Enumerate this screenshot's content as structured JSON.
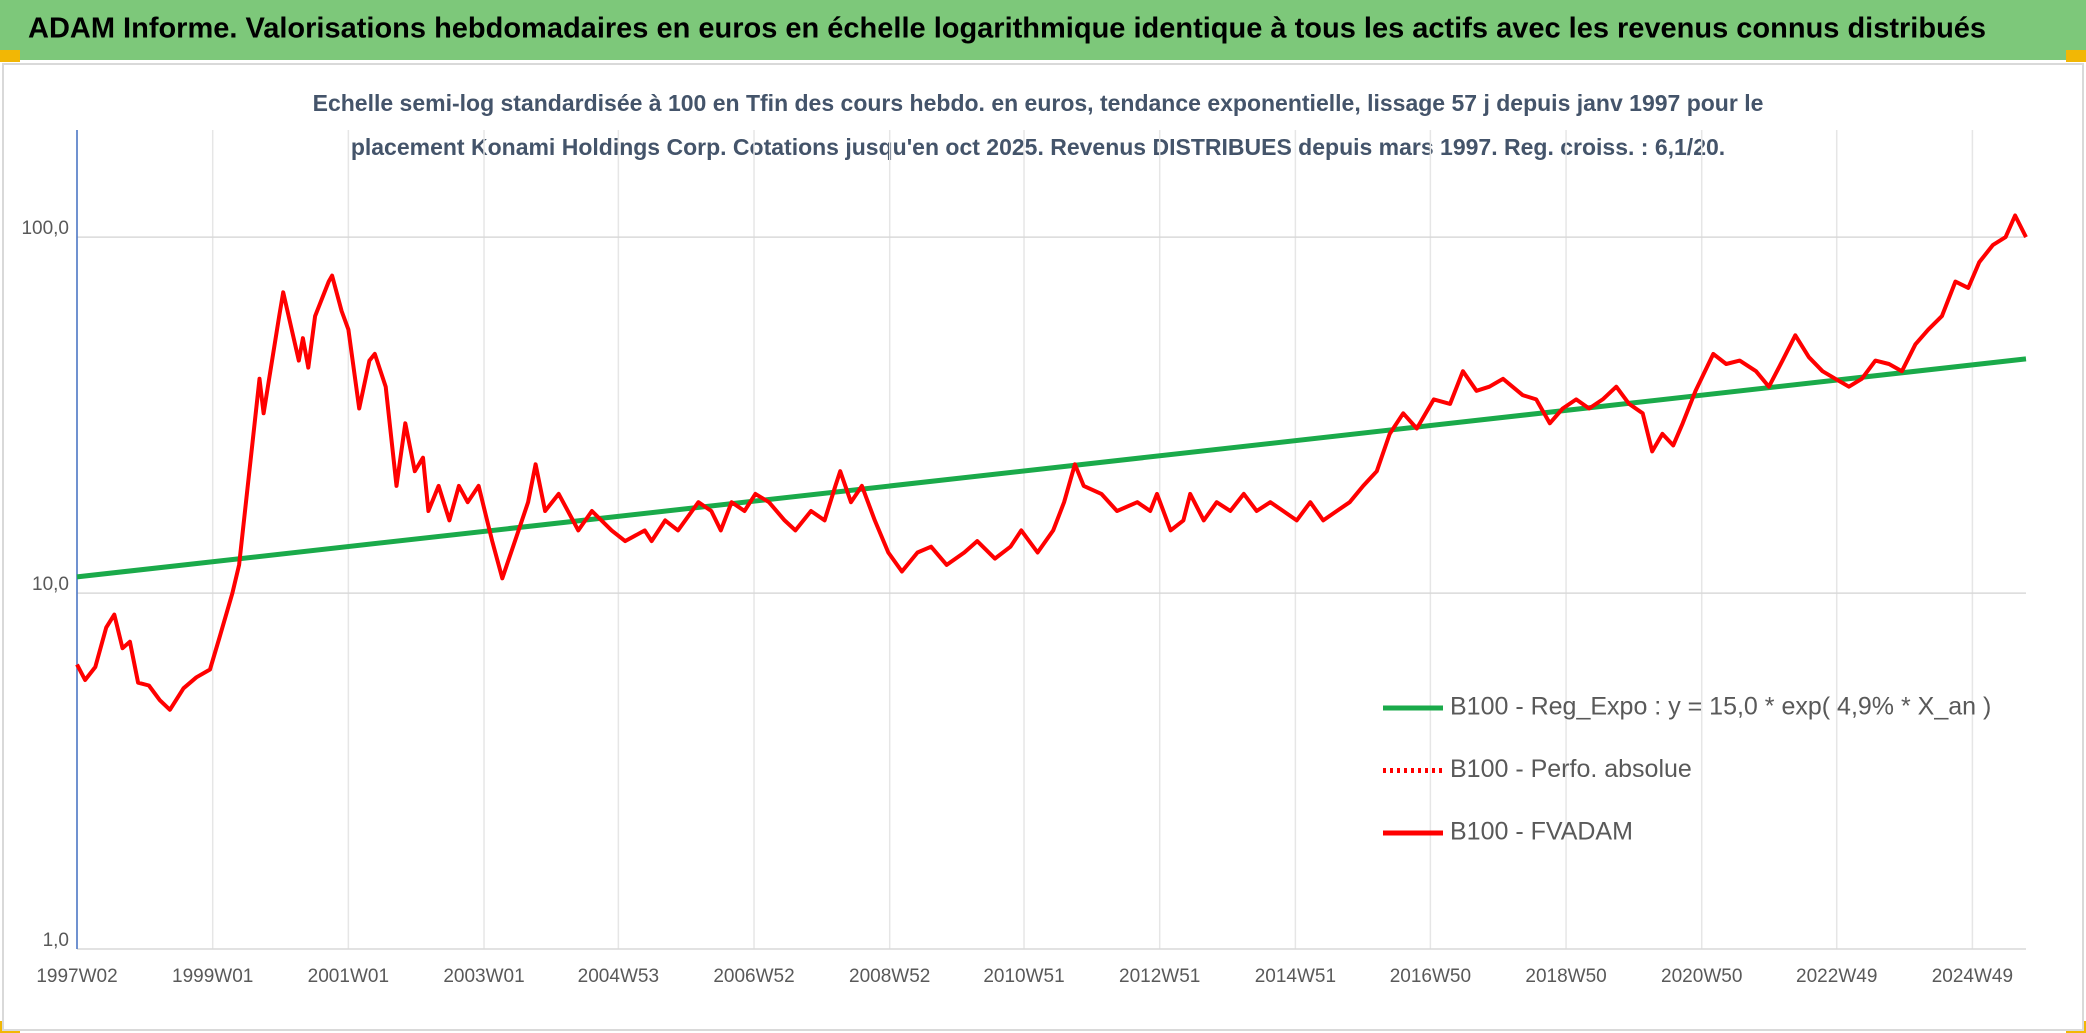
{
  "chart_data": {
    "type": "line",
    "title": "ADAM Informe. Valorisations hebdomadaires en euros en échelle logarithmique identique à tous les actifs avec les revenus connus distribués",
    "subtitle": [
      "Echelle semi-log standardisée à 100 en Tfin des cours hebdo. en euros, tendance exponentielle, lissage 57 j depuis janv 1997 pour le",
      "placement Konami Holdings Corp. Cotations jusqu'en oct 2025. Revenus DISTRIBUES depuis mars 1997. Reg. croiss. : 6,1/20."
    ],
    "yscale": "log",
    "grid": true,
    "legend": "lower right",
    "xlim": [
      1997.0,
      2025.73
    ],
    "ylim": [
      1,
      200
    ],
    "yticks": [
      {
        "value": 1,
        "label": "1,0"
      },
      {
        "value": 10,
        "label": "10,0"
      },
      {
        "value": 100,
        "label": "100,0"
      }
    ],
    "xticks": [
      {
        "value": 1997.0,
        "label": "1997W02"
      },
      {
        "value": 1999.0,
        "label": "1999W01"
      },
      {
        "value": 2001.0,
        "label": "2001W01"
      },
      {
        "value": 2003.0,
        "label": "2003W01"
      },
      {
        "value": 2004.98,
        "label": "2004W53"
      },
      {
        "value": 2006.98,
        "label": "2006W52"
      },
      {
        "value": 2008.98,
        "label": "2008W52"
      },
      {
        "value": 2010.96,
        "label": "2010W51"
      },
      {
        "value": 2012.96,
        "label": "2012W51"
      },
      {
        "value": 2014.96,
        "label": "2014W51"
      },
      {
        "value": 2016.95,
        "label": "2016W50"
      },
      {
        "value": 2018.95,
        "label": "2018W50"
      },
      {
        "value": 2020.95,
        "label": "2020W50"
      },
      {
        "value": 2022.94,
        "label": "2022W49"
      },
      {
        "value": 2024.94,
        "label": "2024W49"
      }
    ],
    "series": [
      {
        "name": "B100 - Reg_Expo : y = 15,0 * exp( 4,9% *  X_an )",
        "color": "#1aaa4a",
        "dash": "solid",
        "x": [
          1997.0,
          2025.73
        ],
        "values": [
          11.1,
          45.5
        ]
      },
      {
        "name": "B100 - Perfo. absolue",
        "color": "#ff0000",
        "dash": "dotted"
      },
      {
        "name": "B100 - FVADAM",
        "color": "#ff0000",
        "dash": "solid",
        "x": [
          1997.0,
          1997.12,
          1997.27,
          1997.43,
          1997.55,
          1997.67,
          1997.78,
          1997.9,
          1998.06,
          1998.22,
          1998.37,
          1998.57,
          1998.76,
          1998.96,
          1999.1,
          1999.29,
          1999.39,
          1999.69,
          1999.75,
          1999.98,
          2000.04,
          2000.27,
          2000.33,
          2000.41,
          2000.51,
          2000.71,
          2000.76,
          2000.9,
          2001.0,
          2001.16,
          2001.31,
          2001.39,
          2001.55,
          2001.71,
          2001.84,
          2001.98,
          2002.1,
          2002.18,
          2002.33,
          2002.49,
          2002.63,
          2002.76,
          2002.92,
          2003.12,
          2003.27,
          2003.51,
          2003.65,
          2003.76,
          2003.9,
          2004.1,
          2004.39,
          2004.59,
          2004.88,
          2005.08,
          2005.37,
          2005.47,
          2005.67,
          2005.86,
          2006.16,
          2006.35,
          2006.49,
          2006.65,
          2006.84,
          2007.0,
          2007.2,
          2007.43,
          2007.59,
          2007.82,
          2008.02,
          2008.18,
          2008.25,
          2008.41,
          2008.57,
          2008.76,
          2008.96,
          2009.16,
          2009.39,
          2009.59,
          2009.82,
          2010.08,
          2010.27,
          2010.53,
          2010.76,
          2010.92,
          2011.16,
          2011.39,
          2011.55,
          2011.71,
          2011.84,
          2012.1,
          2012.33,
          2012.63,
          2012.82,
          2012.92,
          2013.12,
          2013.31,
          2013.41,
          2013.61,
          2013.8,
          2014.0,
          2014.2,
          2014.39,
          2014.59,
          2014.78,
          2014.98,
          2015.18,
          2015.37,
          2015.57,
          2015.76,
          2015.96,
          2016.16,
          2016.35,
          2016.55,
          2016.75,
          2017.0,
          2017.24,
          2017.43,
          2017.63,
          2017.82,
          2018.02,
          2018.31,
          2018.51,
          2018.71,
          2018.9,
          2019.1,
          2019.29,
          2019.49,
          2019.69,
          2019.88,
          2020.08,
          2020.22,
          2020.37,
          2020.53,
          2020.67,
          2020.86,
          2021.12,
          2021.31,
          2021.51,
          2021.75,
          2021.94,
          2022.14,
          2022.33,
          2022.53,
          2022.73,
          2022.92,
          2023.12,
          2023.31,
          2023.51,
          2023.71,
          2023.9,
          2024.1,
          2024.29,
          2024.49,
          2024.69,
          2024.88,
          2025.04,
          2025.24,
          2025.43,
          2025.57,
          2025.73
        ],
        "values": [
          6.3,
          5.7,
          6.2,
          8.0,
          8.7,
          7.0,
          7.3,
          5.6,
          5.5,
          5.0,
          4.7,
          5.4,
          5.8,
          6.1,
          7.5,
          10,
          12,
          40,
          32,
          60,
          70,
          45,
          52,
          43,
          60,
          75,
          78,
          62,
          55,
          33,
          45,
          47,
          38,
          20,
          30,
          22,
          24,
          17,
          20,
          16,
          20,
          18,
          20,
          14,
          11,
          15,
          18,
          23,
          17,
          19,
          15,
          17,
          15,
          14,
          15,
          14,
          16,
          15,
          18,
          17,
          15,
          18,
          17,
          19,
          18,
          16,
          15,
          17,
          16,
          20,
          22,
          18,
          20,
          16,
          13,
          11.5,
          13,
          13.5,
          12,
          13,
          14,
          12.5,
          13.5,
          15,
          13,
          15,
          18,
          23,
          20,
          19,
          17,
          18,
          17,
          19,
          15,
          16,
          19,
          16,
          18,
          17,
          19,
          17,
          18,
          17,
          16,
          18,
          16,
          17,
          18,
          20,
          22,
          28,
          32,
          29,
          35,
          34,
          42,
          37,
          38,
          40,
          36,
          35,
          30,
          33,
          35,
          33,
          35,
          38,
          34,
          32,
          25,
          28,
          26,
          30,
          37,
          47,
          44,
          45,
          42,
          38,
          45,
          53,
          46,
          42,
          40,
          38,
          40,
          45,
          44,
          42,
          50,
          55,
          60,
          75,
          72,
          85,
          95,
          100,
          115,
          100
        ]
      }
    ]
  }
}
